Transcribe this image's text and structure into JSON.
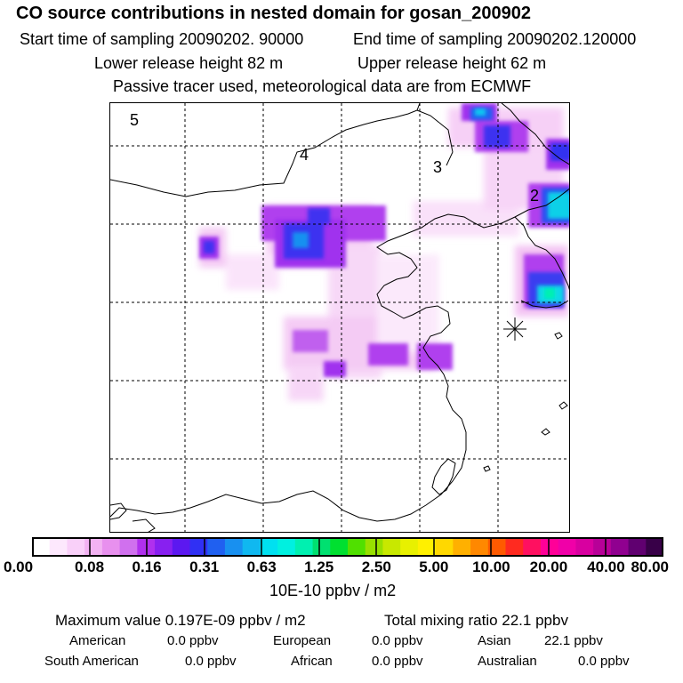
{
  "header": {
    "title": "CO  source contributions in nested domain for gosan_200902",
    "start_label": "Start time of sampling 20090202. 90000",
    "end_label": "End time of sampling 20090202.120000",
    "lower_label": "Lower release height   82 m",
    "upper_label": "Upper release height   62 m",
    "note": "Passive tracer used, meteorological data are from ECMWF"
  },
  "map": {
    "region_labels": [
      "5",
      "4",
      "3",
      "2"
    ],
    "receptor_marker": "asterisk-icon"
  },
  "colorbar": {
    "colors": [
      "#ffffff",
      "#fde8fd",
      "#f9d0f9",
      "#f2b2f2",
      "#e890ee",
      "#d070ee",
      "#b030ee",
      "#8820f0",
      "#5c18f0",
      "#3030f4",
      "#2060f0",
      "#1890f0",
      "#10b8f0",
      "#00e0f0",
      "#00f0e0",
      "#00f0b0",
      "#00e070",
      "#00e030",
      "#50e000",
      "#98e000",
      "#c8e800",
      "#e8f000",
      "#fff000",
      "#ffd800",
      "#ffb000",
      "#ff8800",
      "#ff5a00",
      "#ff2a20",
      "#ff1060",
      "#ff0098",
      "#f000a8",
      "#d800a0",
      "#b80098",
      "#900090",
      "#600070",
      "#380048"
    ],
    "tick_labels": [
      "0.00",
      "0.08",
      "0.16",
      "0.31",
      "0.63",
      "1.25",
      "2.50",
      "5.00",
      "10.00",
      "20.00",
      "40.00",
      "80.00"
    ],
    "unit": "10E-10 ppbv / m2"
  },
  "footer": {
    "max_value": "Maximum value  0.197E-09 ppbv / m2",
    "total": "Total mixing ratio      22.1 ppbv",
    "american_label": "American",
    "american_value": "0.0 ppbv",
    "european_label": "European",
    "european_value": "0.0 ppbv",
    "asian_label": "Asian",
    "asian_value": "22.1 ppbv",
    "south_american_label": "South American",
    "south_american_value": "0.0 ppbv",
    "african_label": "African",
    "african_value": "0.0 ppbv",
    "australian_label": "Australian",
    "australian_value": "0.0 ppbv"
  }
}
